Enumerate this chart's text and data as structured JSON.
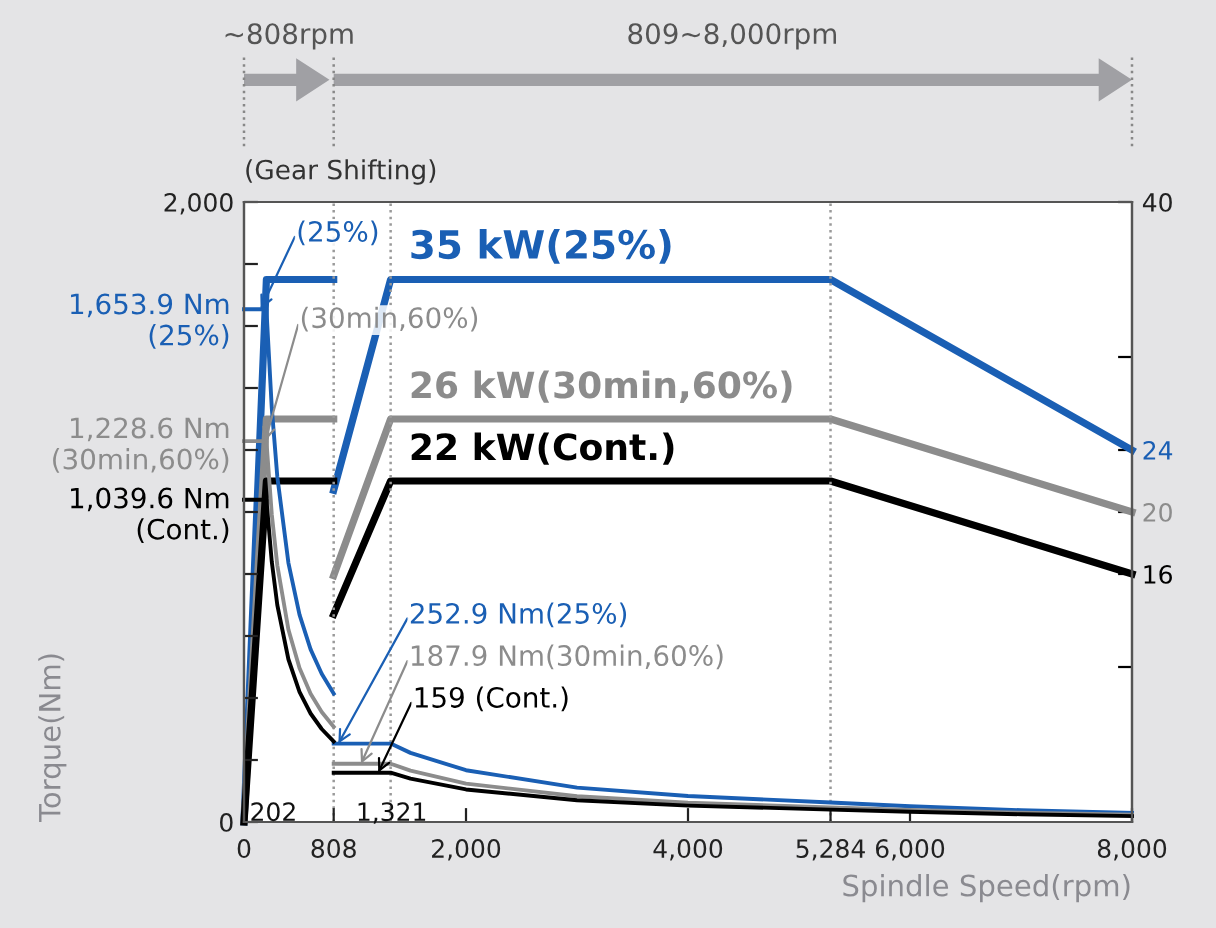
{
  "chart_data": {
    "type": "line",
    "xlabel": "Spindle Speed(rpm)",
    "ylabel": "Torque(Nm)",
    "xlim": [
      0,
      8000
    ],
    "ylim": [
      0,
      2000
    ],
    "y2lim": [
      0,
      40
    ],
    "xticks": [
      0,
      808,
      {
        "value": 2000,
        "label": "2,000"
      },
      {
        "value": 4000,
        "label": "4,000"
      },
      {
        "value": 5284,
        "label": "5,284"
      },
      {
        "value": 6000,
        "label": "6,000"
      },
      {
        "value": 8000,
        "label": "8,000"
      }
    ],
    "yticks": [
      0,
      {
        "value": 200,
        "label": null
      },
      {
        "value": 400,
        "label": null
      },
      {
        "value": 600,
        "label": null
      },
      {
        "value": 800,
        "label": null
      },
      {
        "value": 1000,
        "label": null
      },
      {
        "value": 1200,
        "label": null
      },
      {
        "value": 1400,
        "label": null
      },
      {
        "value": 1600,
        "label": null
      },
      {
        "value": 1800,
        "label": null
      },
      {
        "value": 2000,
        "label": "2,000"
      }
    ],
    "y2ticks": [
      {
        "value": 10,
        "label": null
      },
      16,
      20,
      24,
      {
        "value": 30,
        "label": null
      },
      40
    ],
    "grid": false,
    "marker": "none",
    "line_style": "solid",
    "series": [
      {
        "color": "#1a5fb4",
        "axis": "y",
        "x": [
          0,
          202,
          250,
          300,
          400,
          500,
          600,
          700,
          808
        ],
        "values": [
          1653.9,
          1653.9,
          1337,
          1114,
          836,
          669,
          557,
          478,
          414
        ]
      },
      {
        "color": "#1a5fb4",
        "axis": "y",
        "x": [
          808,
          1321,
          1500,
          2000,
          3000,
          4000,
          5284,
          6000,
          7000,
          8000
        ],
        "values": [
          252.9,
          252.9,
          223,
          167,
          111,
          84,
          63,
          51,
          38,
          29
        ]
      },
      {
        "color": "#8c8c8c",
        "axis": "y",
        "x": [
          0,
          202,
          250,
          300,
          400,
          500,
          600,
          700,
          808
        ],
        "values": [
          1228.6,
          1228.6,
          993,
          828,
          621,
          497,
          414,
          355,
          307
        ]
      },
      {
        "color": "#8c8c8c",
        "axis": "y",
        "x": [
          808,
          1321,
          1500,
          2000,
          3000,
          4000,
          5284,
          6000,
          7000,
          8000
        ],
        "values": [
          187.9,
          187.9,
          166,
          124,
          83,
          62,
          47,
          39,
          30,
          24
        ]
      },
      {
        "color": "#000000",
        "axis": "y",
        "x": [
          0,
          202,
          250,
          300,
          400,
          500,
          600,
          700,
          808
        ],
        "values": [
          1039.6,
          1039.6,
          840,
          700,
          525,
          420,
          350,
          300,
          260
        ]
      },
      {
        "color": "#000000",
        "axis": "y",
        "x": [
          808,
          1321,
          1500,
          2000,
          3000,
          4000,
          5284,
          6000,
          7000,
          8000
        ],
        "values": [
          159,
          159,
          140,
          105,
          70,
          53,
          40,
          33,
          25,
          19
        ]
      },
      {
        "color": "#1a5fb4",
        "axis": "y2",
        "x": [
          0,
          202,
          808
        ],
        "values": [
          0,
          35,
          35
        ]
      },
      {
        "color": "#1a5fb4",
        "axis": "y2",
        "x": [
          808,
          1321,
          5284,
          8000
        ],
        "values": [
          21.4,
          35,
          35,
          24
        ]
      },
      {
        "color": "#8c8c8c",
        "axis": "y2",
        "x": [
          0,
          202,
          808
        ],
        "values": [
          0,
          26,
          26
        ]
      },
      {
        "color": "#8c8c8c",
        "axis": "y2",
        "x": [
          808,
          1321,
          5284,
          8000
        ],
        "values": [
          15.9,
          26,
          26,
          20
        ]
      },
      {
        "color": "#000000",
        "axis": "y2",
        "x": [
          0,
          202,
          808
        ],
        "values": [
          0,
          22,
          22
        ]
      },
      {
        "color": "#000000",
        "axis": "y2",
        "x": [
          808,
          1321,
          5284,
          8000
        ],
        "values": [
          13.4,
          22,
          22,
          16
        ]
      }
    ],
    "ref_lines": [
      {
        "axis": "x",
        "value": 808,
        "color": "#9a9a9a",
        "line_style": "dotted"
      },
      {
        "axis": "x",
        "value": 1321,
        "color": "#9a9a9a",
        "line_style": "dotted"
      },
      {
        "axis": "x",
        "value": 5284,
        "color": "#9a9a9a",
        "line_style": "dotted"
      }
    ],
    "annotations": [
      "~808rpm",
      "809~8,000rpm",
      "(Gear Shifting)",
      {
        "text": "(25%)",
        "x": 150,
        "y": 1653.9
      },
      "35 kW(25%)",
      {
        "text": "(30min,60%)",
        "x": 190,
        "y": 1228.6
      },
      "26 kW(30min,60%)",
      "22 kW(Cont.)",
      "1,653.9 Nm\n(25%)",
      "1,228.6 Nm\n(30min,60%)",
      "1,039.6 Nm\n(Cont.)",
      {
        "text": "252.9 Nm(25%)",
        "x": 850,
        "y": 252.9
      },
      {
        "text": "187.9 Nm(30min,60%)",
        "x": 1054,
        "y": 187.9
      },
      {
        "text": "159 (Cont.)",
        "x": 1209,
        "y": 159
      },
      "202",
      "1,321"
    ]
  }
}
